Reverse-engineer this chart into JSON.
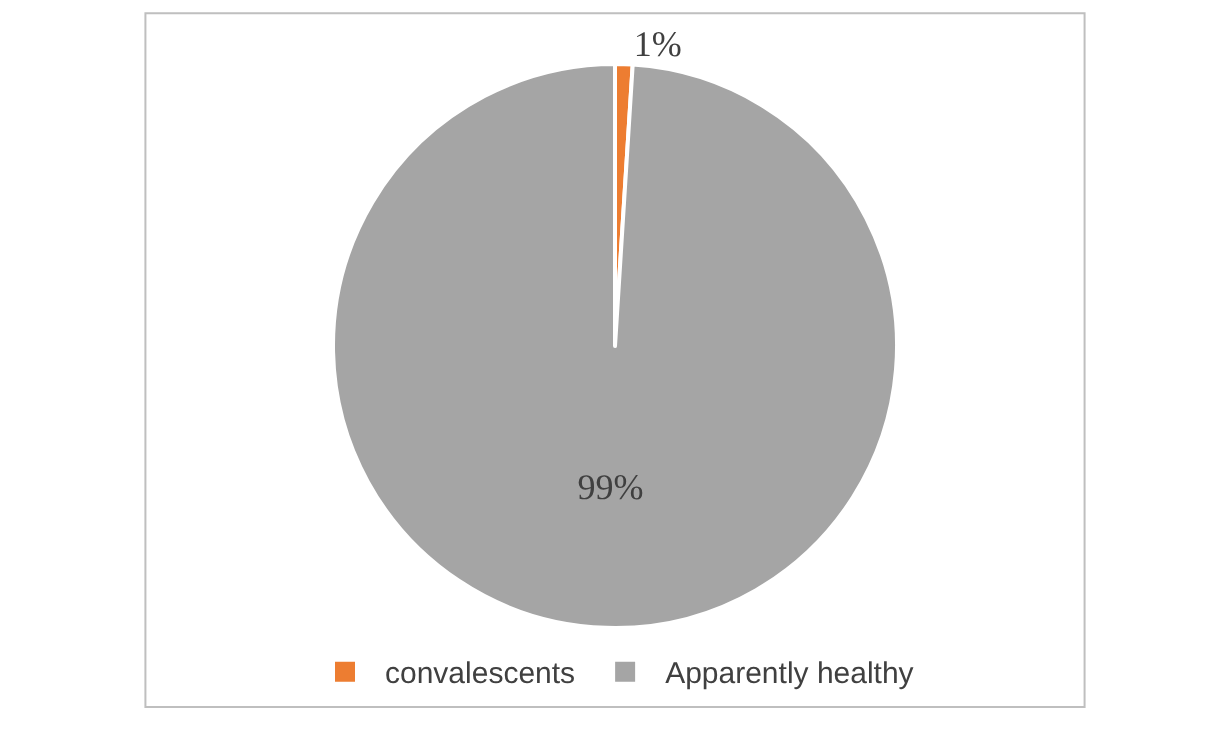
{
  "chart_data": {
    "type": "pie",
    "categories": [
      "convalescents",
      "Apparently healthy"
    ],
    "values": [
      1,
      99
    ],
    "colors": [
      "#ed7d31",
      "#a5a5a5"
    ],
    "value_labels": [
      "1%",
      "99%"
    ],
    "legend": "bottom"
  }
}
